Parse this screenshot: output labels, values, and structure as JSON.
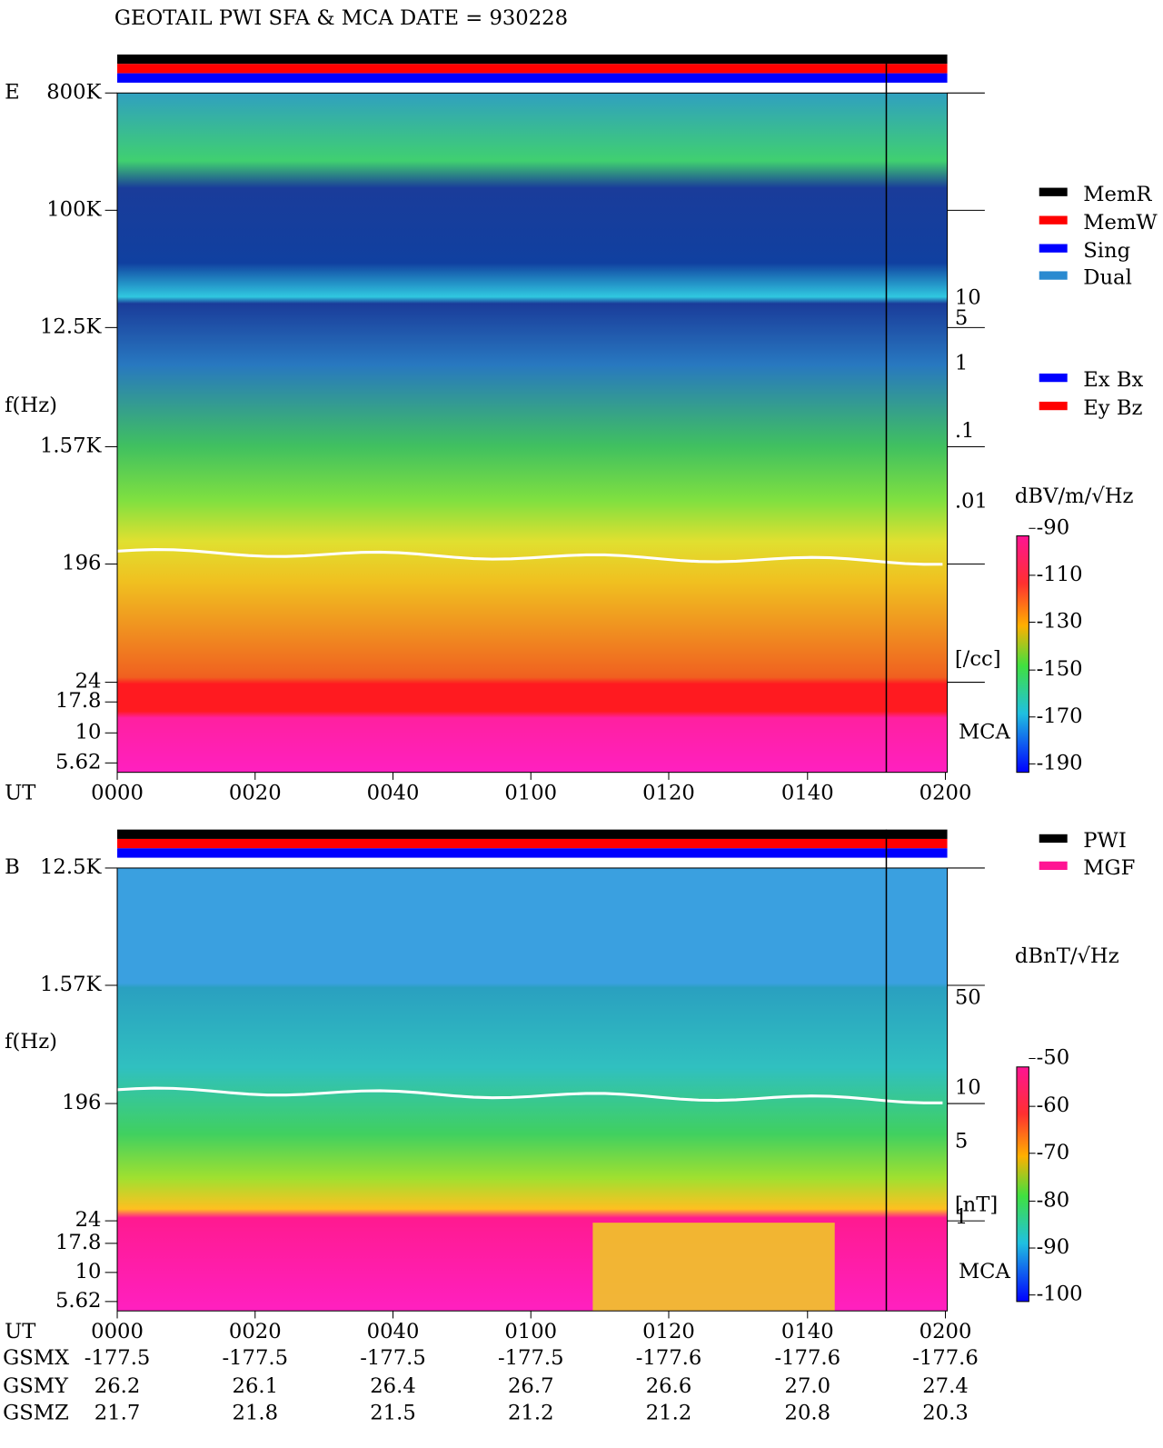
{
  "title": "GEOTAIL  PWI SFA & MCA   DATE = 930228",
  "panels": [
    {
      "label": "E",
      "ylabel": "f(Hz)",
      "mca": "MCA",
      "yticks": [
        "800K",
        "100K",
        "12.5K",
        "1.57K",
        "196",
        "24",
        "17.8",
        "10",
        "5.62"
      ],
      "right_labels": [
        "10",
        "5",
        "1",
        ".1",
        ".01",
        "[/cc]"
      ],
      "legend": [
        {
          "name": "MemR",
          "color": "#000000"
        },
        {
          "name": "MemW",
          "color": "#ff0000"
        },
        {
          "name": "Sing",
          "color": "#0000ff"
        },
        {
          "name": "Dual",
          "color": "#2a8ad0"
        }
      ],
      "legend2": [
        {
          "name": "Ex Bx",
          "color": "#0000ff"
        },
        {
          "name": "Ey Bz",
          "color": "#ff0000"
        }
      ],
      "colorbar": {
        "unit": "dBV/m/√Hz",
        "ticks": [
          -90,
          -110,
          -130,
          -150,
          -170,
          -190
        ]
      }
    },
    {
      "label": "B",
      "ylabel": "f(Hz)",
      "mca": "MCA",
      "yticks": [
        "12.5K",
        "1.57K",
        "196",
        "24",
        "17.8",
        "10",
        "5.62"
      ],
      "right_labels": [
        "50",
        "10",
        "5",
        "1",
        "[nT]"
      ],
      "legend": [
        {
          "name": "PWI",
          "color": "#000000"
        },
        {
          "name": "MGF",
          "color": "#ff1493"
        }
      ],
      "legend2": [],
      "colorbar": {
        "unit": "dBnT/√Hz",
        "ticks": [
          -50,
          -60,
          -70,
          -80,
          -90,
          -100
        ]
      }
    }
  ],
  "xaxis": {
    "label": "UT",
    "ticks": [
      "0000",
      "0020",
      "0040",
      "0100",
      "0120",
      "0140",
      "0200"
    ]
  },
  "ephemeris": [
    {
      "name": "GSMX",
      "values": [
        "-177.5",
        "-177.5",
        "-177.5",
        "-177.5",
        "-177.6",
        "-177.6",
        "-177.6"
      ]
    },
    {
      "name": "GSMY",
      "values": [
        "26.2",
        "26.1",
        "26.4",
        "26.7",
        "26.6",
        "27.0",
        "27.4"
      ]
    },
    {
      "name": "GSMZ",
      "values": [
        "21.7",
        "21.8",
        "21.5",
        "21.2",
        "21.2",
        "20.8",
        "20.3"
      ]
    }
  ]
}
